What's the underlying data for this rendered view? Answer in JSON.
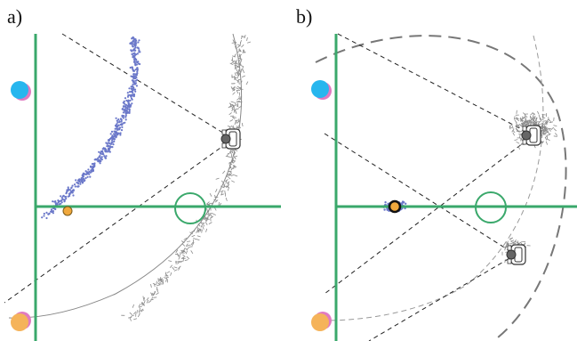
{
  "panels": [
    {
      "label": "a)"
    },
    {
      "label": "b)"
    }
  ],
  "colors": {
    "axis_green": "#3aa86b",
    "blue_scatter": "#6b78c9",
    "gray_scatter": "#8a8a8a",
    "cyan_marker": "#27b6ee",
    "pink_marker": "#e07ac0",
    "orange_marker": "#f5b35a",
    "dark_marker": "#222222",
    "dashed_line": "#222222",
    "arc_gray": "#888888"
  },
  "icons": [
    "robot-icon",
    "cyan-landmark-icon",
    "orange-landmark-icon",
    "green-target-circle-icon"
  ]
}
